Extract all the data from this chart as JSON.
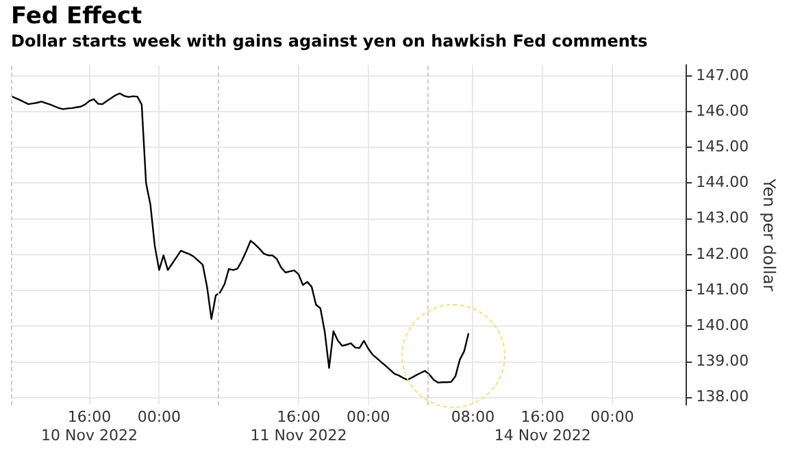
{
  "chart_data": {
    "type": "line",
    "title": "Fed Effect",
    "subtitle": "Dollar starts week with gains against yen on hawkish Fed comments",
    "ylabel": "Yen per dollar",
    "categories": [
      null,
      null,
      null,
      null,
      null,
      null,
      null,
      null,
      null,
      null,
      null,
      null,
      null,
      null,
      null,
      null,
      null,
      null,
      "16:00\n10 Nov 2022",
      null,
      null,
      null,
      null,
      null,
      null,
      null,
      null,
      null,
      null,
      null,
      null,
      null,
      null,
      null,
      "00:00",
      null,
      null,
      null,
      null,
      null,
      null,
      null,
      null,
      null,
      null,
      null,
      null,
      null,
      null,
      null,
      null,
      null,
      null,
      null,
      null,
      null,
      null,
      null,
      null,
      null,
      null,
      null,
      null,
      null,
      null,
      null,
      "16:00\n11 Nov 2022",
      null,
      null,
      null,
      null,
      null,
      null,
      null,
      null,
      null,
      null,
      null,
      null,
      null,
      null,
      null,
      "00:00",
      null,
      null,
      null,
      null,
      null,
      null,
      null,
      null,
      null,
      null,
      null,
      null,
      null,
      null,
      null,
      null,
      null,
      null,
      null,
      null,
      null,
      null,
      null,
      "08:00",
      null,
      null,
      null,
      null,
      null,
      null,
      null,
      null,
      null,
      null,
      null,
      null,
      null,
      null,
      null,
      "16:00\n14 Nov 2022",
      null,
      null,
      null,
      null,
      null,
      null,
      null,
      null,
      null,
      null,
      null,
      null,
      null,
      null,
      null,
      "00:00",
      null,
      null,
      null,
      null,
      null,
      null,
      null,
      null,
      null,
      null,
      null,
      null,
      null,
      null,
      null,
      null,
      null
    ],
    "series": [
      {
        "color": "#000000",
        "values": [
          146.44,
          146.38,
          146.33,
          146.27,
          146.21,
          146.23,
          146.25,
          146.28,
          146.24,
          146.2,
          146.15,
          146.1,
          146.07,
          146.09,
          146.1,
          146.12,
          146.14,
          146.2,
          146.3,
          146.35,
          146.22,
          146.21,
          146.3,
          146.38,
          146.46,
          146.51,
          146.44,
          146.41,
          146.43,
          146.42,
          146.2,
          144.0,
          143.4,
          142.25,
          141.57,
          141.98,
          141.57,
          141.75,
          141.93,
          142.11,
          142.06,
          142.01,
          141.94,
          141.83,
          141.72,
          141.1,
          140.2,
          140.86,
          140.95,
          141.17,
          141.6,
          141.57,
          141.61,
          141.83,
          142.1,
          142.39,
          142.29,
          142.17,
          142.03,
          141.98,
          141.98,
          141.88,
          141.64,
          141.5,
          141.53,
          141.56,
          141.45,
          141.15,
          141.24,
          141.1,
          140.6,
          140.5,
          139.85,
          138.83,
          139.86,
          139.6,
          139.45,
          139.48,
          139.52,
          139.4,
          139.39,
          139.59,
          139.37,
          139.2,
          139.1,
          138.99,
          138.89,
          138.78,
          138.67,
          138.62,
          138.55,
          138.5,
          138.56,
          138.63,
          138.69,
          138.75,
          138.65,
          138.5,
          138.42,
          138.43,
          138.43,
          138.44,
          138.6,
          139.06,
          139.3,
          139.8,
          null,
          null,
          null,
          null,
          null,
          null,
          null,
          null,
          null,
          null,
          null,
          null,
          null,
          null,
          null,
          null,
          null,
          null,
          null,
          null,
          null,
          null,
          null,
          null,
          null,
          null,
          null,
          null,
          null,
          null,
          null,
          null,
          null,
          null,
          null,
          null,
          null,
          null,
          null,
          null,
          null,
          null,
          null,
          null,
          null,
          null,
          null,
          null,
          null,
          null
        ]
      }
    ],
    "ylim": [
      137.8,
      147.3
    ],
    "yticks": [
      {
        "value": 138,
        "label": "138.00"
      },
      {
        "value": 139,
        "label": "139.00"
      },
      {
        "value": 140,
        "label": "140.00"
      },
      {
        "value": 141,
        "label": "141.00"
      },
      {
        "value": 142,
        "label": "142.00"
      },
      {
        "value": 143,
        "label": "143.00"
      },
      {
        "value": 144,
        "label": "144.00"
      },
      {
        "value": 145,
        "label": "145.00"
      },
      {
        "value": 146,
        "label": "146.00"
      },
      {
        "value": 147,
        "label": "147.00"
      }
    ],
    "grid": true,
    "legend": false,
    "marker": "none",
    "line_style": "solid"
  }
}
